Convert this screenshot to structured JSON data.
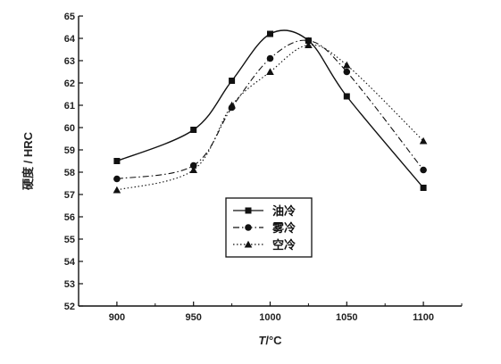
{
  "chart_data": {
    "type": "line",
    "title": "",
    "xlabel_italic": "T",
    "xlabel_rest": "/°C",
    "ylabel": "硬度 / HRC",
    "x": [
      900,
      950,
      975,
      1000,
      1025,
      1050,
      1100
    ],
    "xticks": [
      900,
      950,
      1000,
      1050,
      1100
    ],
    "yticks": [
      52,
      53,
      54,
      55,
      56,
      57,
      58,
      59,
      60,
      61,
      62,
      63,
      64,
      65
    ],
    "xlim": [
      875,
      1125
    ],
    "ylim": [
      52,
      65
    ],
    "legend_position": "center-bottom",
    "grid": false,
    "series": [
      {
        "name": "油冷",
        "marker": "square",
        "line_style": "solid",
        "values": [
          58.5,
          59.9,
          62.1,
          64.2,
          63.9,
          61.4,
          57.3
        ]
      },
      {
        "name": "雾冷",
        "marker": "circle",
        "line_style": "dash-dot",
        "values": [
          57.7,
          58.3,
          60.9,
          63.1,
          63.9,
          62.5,
          58.1
        ]
      },
      {
        "name": "空冷",
        "marker": "triangle",
        "line_style": "dotted",
        "values": [
          57.2,
          58.1,
          61.0,
          62.5,
          63.7,
          62.8,
          59.4
        ]
      }
    ]
  },
  "colors": {
    "ink": "#111111",
    "background": "#ffffff"
  }
}
